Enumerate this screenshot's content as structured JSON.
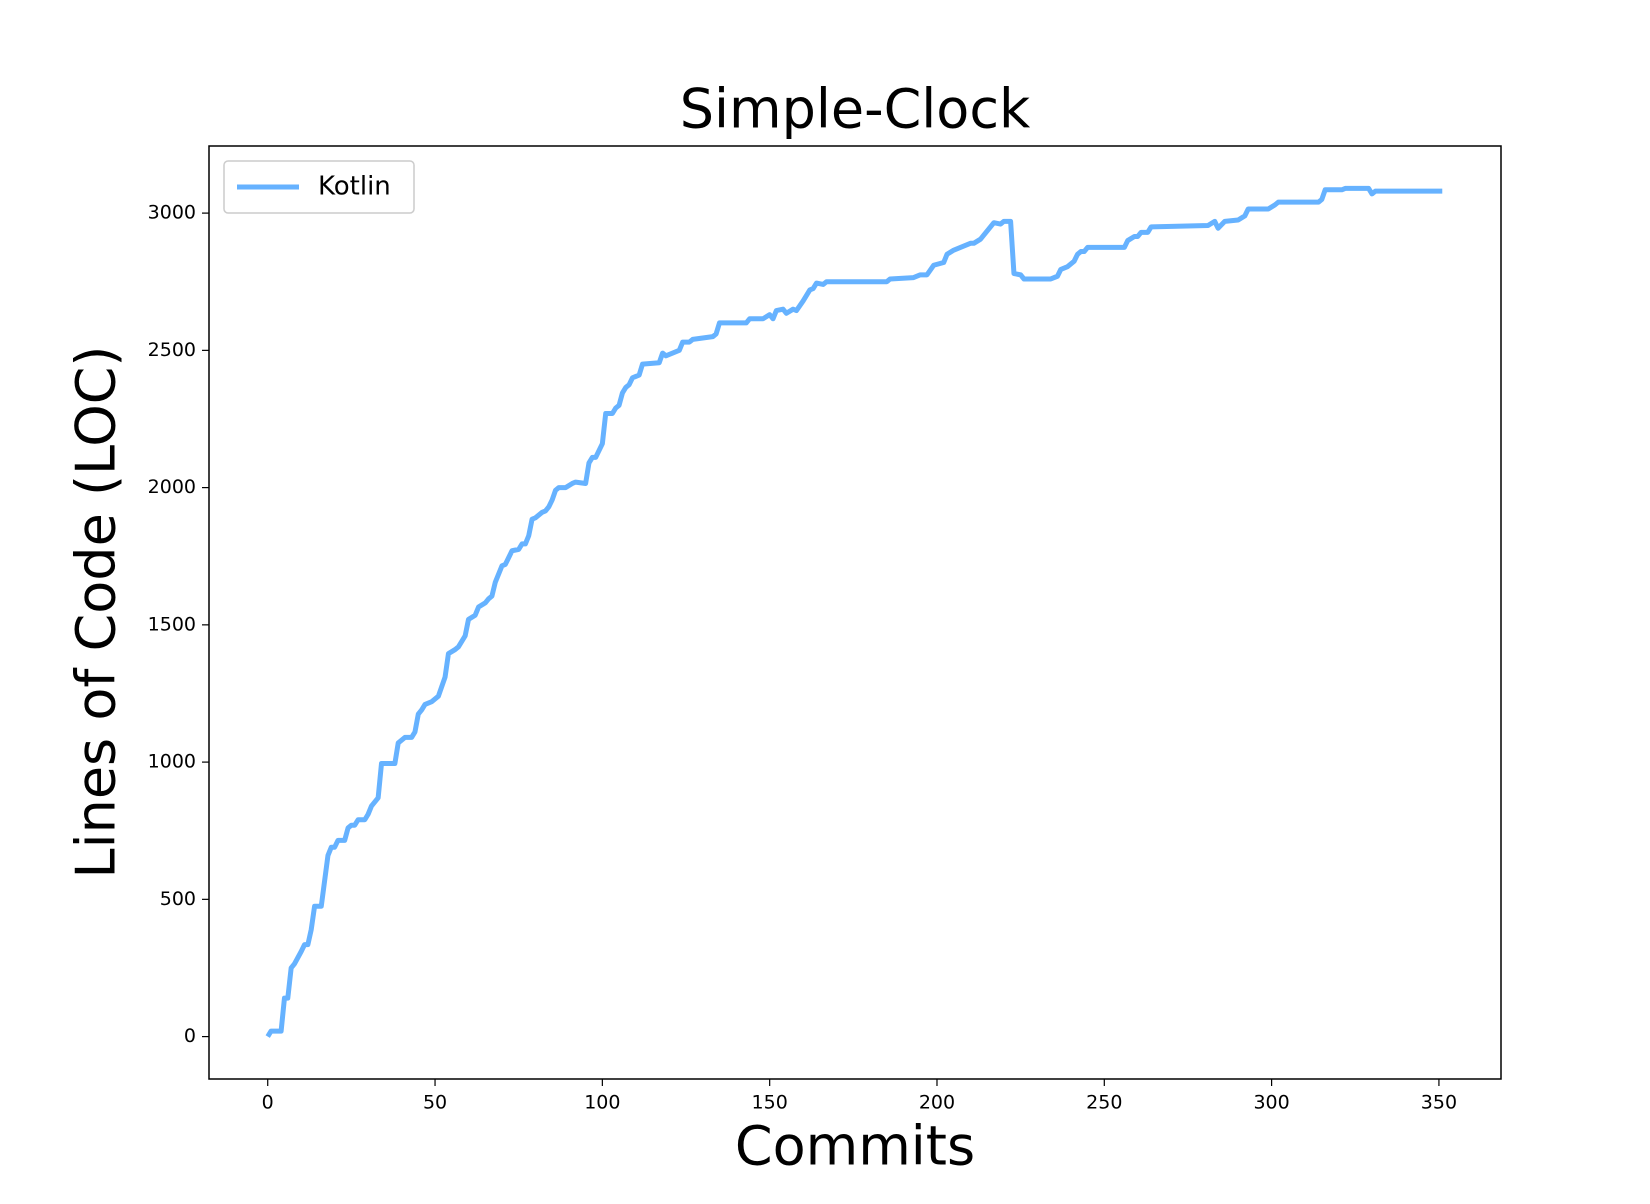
{
  "chart_data": {
    "type": "line",
    "title": "Simple-Clock",
    "x_label": "Commits",
    "y_label": "Lines of Code (LOC)",
    "xlim": [
      -17.55,
      368.55
    ],
    "ylim": [
      -154.5,
      3244.5
    ],
    "xticks": [
      0,
      50,
      100,
      150,
      200,
      250,
      300,
      350
    ],
    "yticks": [
      0,
      500,
      1000,
      1500,
      2000,
      2500,
      3000
    ],
    "legend": "upper left",
    "grid": false,
    "x": [
      0,
      1,
      4,
      5,
      6,
      7,
      8,
      10,
      11,
      12,
      13,
      14,
      16,
      18,
      19,
      20,
      21,
      23,
      24,
      25,
      26,
      27,
      29,
      30,
      31,
      33,
      34,
      38,
      39,
      41,
      43,
      44,
      45,
      46,
      47,
      49,
      51,
      53,
      54,
      56,
      57,
      59,
      60,
      62,
      63,
      65,
      66,
      67,
      68,
      70,
      71,
      72,
      73,
      75,
      76,
      77,
      78,
      79,
      80,
      82,
      83,
      84,
      85,
      86,
      87,
      89,
      91,
      92,
      95,
      96,
      97,
      98,
      100,
      101,
      103,
      104,
      105,
      106,
      107,
      108,
      109,
      111,
      112,
      117,
      118,
      119,
      121,
      123,
      124,
      126,
      127,
      130,
      133,
      134,
      135,
      143,
      144,
      148,
      150,
      151,
      152,
      154,
      155,
      157,
      158,
      160,
      162,
      163,
      164,
      166,
      167,
      185,
      186,
      193,
      195,
      197,
      199,
      202,
      203,
      205,
      208,
      210,
      211,
      213,
      215,
      217,
      219,
      220,
      222,
      223,
      225,
      226,
      234,
      236,
      237,
      239,
      241,
      242,
      243,
      244,
      245,
      256,
      257,
      259,
      260,
      261,
      263,
      264,
      281,
      283,
      284,
      286,
      290,
      292,
      293,
      299,
      301,
      302,
      314,
      315,
      316,
      321,
      322,
      329,
      330,
      331,
      351
    ],
    "series": [
      {
        "name": "Kotlin",
        "color": "#66b2ff",
        "values": [
          0,
          20,
          20,
          140,
          140,
          250,
          265,
          310,
          335,
          335,
          390,
          475,
          475,
          660,
          690,
          690,
          715,
          715,
          760,
          770,
          770,
          790,
          790,
          810,
          840,
          870,
          995,
          995,
          1070,
          1090,
          1090,
          1110,
          1175,
          1190,
          1210,
          1220,
          1240,
          1310,
          1395,
          1410,
          1420,
          1460,
          1520,
          1535,
          1565,
          1580,
          1595,
          1605,
          1655,
          1715,
          1720,
          1745,
          1770,
          1775,
          1795,
          1795,
          1825,
          1885,
          1890,
          1910,
          1915,
          1930,
          1955,
          1990,
          2000,
          2000,
          2015,
          2020,
          2015,
          2090,
          2110,
          2110,
          2160,
          2270,
          2270,
          2290,
          2300,
          2345,
          2365,
          2375,
          2400,
          2410,
          2450,
          2455,
          2490,
          2480,
          2490,
          2500,
          2530,
          2530,
          2540,
          2545,
          2550,
          2560,
          2600,
          2600,
          2615,
          2615,
          2630,
          2615,
          2645,
          2650,
          2635,
          2650,
          2645,
          2680,
          2720,
          2725,
          2745,
          2740,
          2750,
          2750,
          2760,
          2765,
          2775,
          2775,
          2810,
          2820,
          2850,
          2865,
          2880,
          2890,
          2890,
          2905,
          2935,
          2965,
          2960,
          2970,
          2970,
          2780,
          2775,
          2760,
          2760,
          2770,
          2795,
          2805,
          2825,
          2850,
          2860,
          2860,
          2875,
          2875,
          2900,
          2915,
          2915,
          2930,
          2930,
          2950,
          2955,
          2970,
          2945,
          2970,
          2975,
          2990,
          3015,
          3015,
          3030,
          3040,
          3040,
          3050,
          3085,
          3085,
          3090,
          3090,
          3070,
          3080,
          3080
        ]
      }
    ]
  }
}
